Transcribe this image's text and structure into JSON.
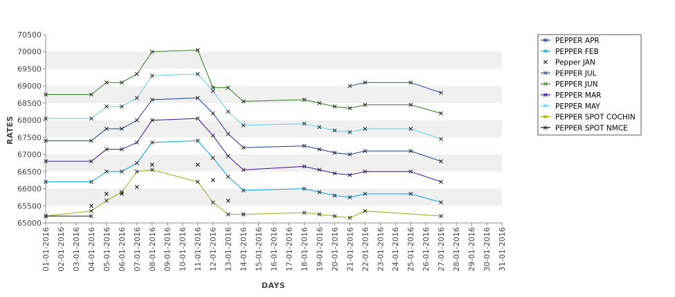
{
  "chart_data": {
    "type": "line",
    "title": "",
    "xlabel": "DAYS",
    "ylabel": "RATES",
    "ylim": [
      65000,
      70500
    ],
    "y_ticks": [
      "65000",
      "65500",
      "66000",
      "66500",
      "67000",
      "67500",
      "68000",
      "68500",
      "69000",
      "69500",
      "70000",
      "70500"
    ],
    "x_ticks": [
      "01-01-2016",
      "02-01-2016",
      "03-01-2016",
      "04-01-2016",
      "05-01-2016",
      "06-01-2016",
      "07-01-2016",
      "08-01-2016",
      "09-01-2016",
      "10-01-2016",
      "11-01-2016",
      "12-01-2016",
      "13-01-2016",
      "14-01-2016",
      "15-01-2016",
      "16-01-2016",
      "17-01-2016",
      "18-01-2016",
      "19-01-2016",
      "20-01-2016",
      "21-01-2016",
      "22-01-2016",
      "23-01-2016",
      "24-01-2016",
      "25-01-2016",
      "26-01-2016",
      "27-01-2016",
      "28-01-2016",
      "29-01-2016",
      "30-01-2016",
      "31-01-2016"
    ],
    "grid": "alternating horizontal bands",
    "legend_position": "right",
    "series": [
      {
        "name": "PEPPER APR",
        "color": "#0f3e8c",
        "line": true,
        "points": [
          [
            1,
            67400
          ],
          [
            4,
            67400
          ],
          [
            5,
            67750
          ],
          [
            6,
            67750
          ],
          [
            7,
            68000
          ],
          [
            8,
            68600
          ],
          [
            11,
            68650
          ],
          [
            12,
            68200
          ],
          [
            13,
            67600
          ],
          [
            14,
            67200
          ],
          [
            18,
            67250
          ],
          [
            19,
            67150
          ],
          [
            20,
            67050
          ],
          [
            21,
            67000
          ],
          [
            22,
            67100
          ],
          [
            25,
            67100
          ],
          [
            27,
            66800
          ]
        ]
      },
      {
        "name": "PEPPER FEB",
        "color": "#00a0e0",
        "line": true,
        "points": [
          [
            1,
            66200
          ],
          [
            4,
            66200
          ],
          [
            5,
            66500
          ],
          [
            6,
            66500
          ],
          [
            7,
            66750
          ],
          [
            8,
            67350
          ],
          [
            11,
            67400
          ],
          [
            12,
            66900
          ],
          [
            13,
            66350
          ],
          [
            14,
            65950
          ],
          [
            18,
            66000
          ],
          [
            19,
            65900
          ],
          [
            20,
            65800
          ],
          [
            21,
            65750
          ],
          [
            22,
            65850
          ],
          [
            25,
            65850
          ],
          [
            27,
            65600
          ]
        ]
      },
      {
        "name": "Pepper JAN",
        "color": "#000000",
        "line": false,
        "points": [
          [
            1,
            65200
          ],
          [
            4,
            65500
          ],
          [
            5,
            65850
          ],
          [
            6,
            65850
          ],
          [
            7,
            66050
          ],
          [
            8,
            66700
          ],
          [
            11,
            66700
          ],
          [
            12,
            66250
          ],
          [
            13,
            65650
          ],
          [
            14,
            65250
          ]
        ]
      },
      {
        "name": "PEPPER JUL",
        "color": "#1b4f9c",
        "line": true,
        "points": [
          [
            21,
            69000
          ],
          [
            22,
            69100
          ],
          [
            25,
            69100
          ],
          [
            27,
            68800
          ]
        ]
      },
      {
        "name": "PEPPER JUN",
        "color": "#2e7d1a",
        "line": true,
        "points": [
          [
            1,
            68750
          ],
          [
            4,
            68750
          ],
          [
            5,
            69100
          ],
          [
            6,
            69100
          ],
          [
            7,
            69350
          ],
          [
            8,
            70000
          ],
          [
            11,
            70050
          ],
          [
            12,
            68950
          ],
          [
            13,
            68950
          ],
          [
            14,
            68550
          ],
          [
            18,
            68600
          ],
          [
            19,
            68500
          ],
          [
            20,
            68400
          ],
          [
            21,
            68350
          ],
          [
            22,
            68450
          ],
          [
            25,
            68450
          ],
          [
            27,
            68200
          ]
        ]
      },
      {
        "name": "PEPPER MAR",
        "color": "#3a0aa0",
        "line": true,
        "points": [
          [
            1,
            66800
          ],
          [
            4,
            66800
          ],
          [
            5,
            67150
          ],
          [
            6,
            67150
          ],
          [
            7,
            67350
          ],
          [
            8,
            68000
          ],
          [
            11,
            68050
          ],
          [
            12,
            67550
          ],
          [
            13,
            66950
          ],
          [
            14,
            66550
          ],
          [
            18,
            66650
          ],
          [
            19,
            66550
          ],
          [
            20,
            66450
          ],
          [
            21,
            66400
          ],
          [
            22,
            66500
          ],
          [
            25,
            66500
          ],
          [
            27,
            66200
          ]
        ]
      },
      {
        "name": "PEPPER MAY",
        "color": "#5fd0e0",
        "line": true,
        "points": [
          [
            1,
            68050
          ],
          [
            4,
            68050
          ],
          [
            5,
            68400
          ],
          [
            6,
            68400
          ],
          [
            7,
            68650
          ],
          [
            8,
            69300
          ],
          [
            11,
            69350
          ],
          [
            12,
            68850
          ],
          [
            13,
            68250
          ],
          [
            14,
            67850
          ],
          [
            18,
            67900
          ],
          [
            19,
            67800
          ],
          [
            20,
            67700
          ],
          [
            21,
            67650
          ],
          [
            22,
            67750
          ],
          [
            25,
            67750
          ],
          [
            27,
            67450
          ]
        ]
      },
      {
        "name": "PEPPER SPOT COCHIN",
        "color": "#9aaa10",
        "line": true,
        "points": [
          [
            1,
            65200
          ],
          [
            4,
            65350
          ],
          [
            5,
            65650
          ],
          [
            6,
            65900
          ],
          [
            7,
            66500
          ],
          [
            8,
            66550
          ],
          [
            11,
            66200
          ],
          [
            12,
            65600
          ],
          [
            13,
            65250
          ],
          [
            14,
            65250
          ],
          [
            18,
            65300
          ],
          [
            19,
            65250
          ],
          [
            20,
            65200
          ],
          [
            21,
            65150
          ],
          [
            22,
            65350
          ],
          [
            27,
            65200
          ]
        ]
      },
      {
        "name": "PEPPER SPOT NMCE",
        "color": "#1a1a00",
        "line": true,
        "points": [
          [
            1,
            65200
          ],
          [
            4,
            65200
          ]
        ]
      }
    ]
  }
}
